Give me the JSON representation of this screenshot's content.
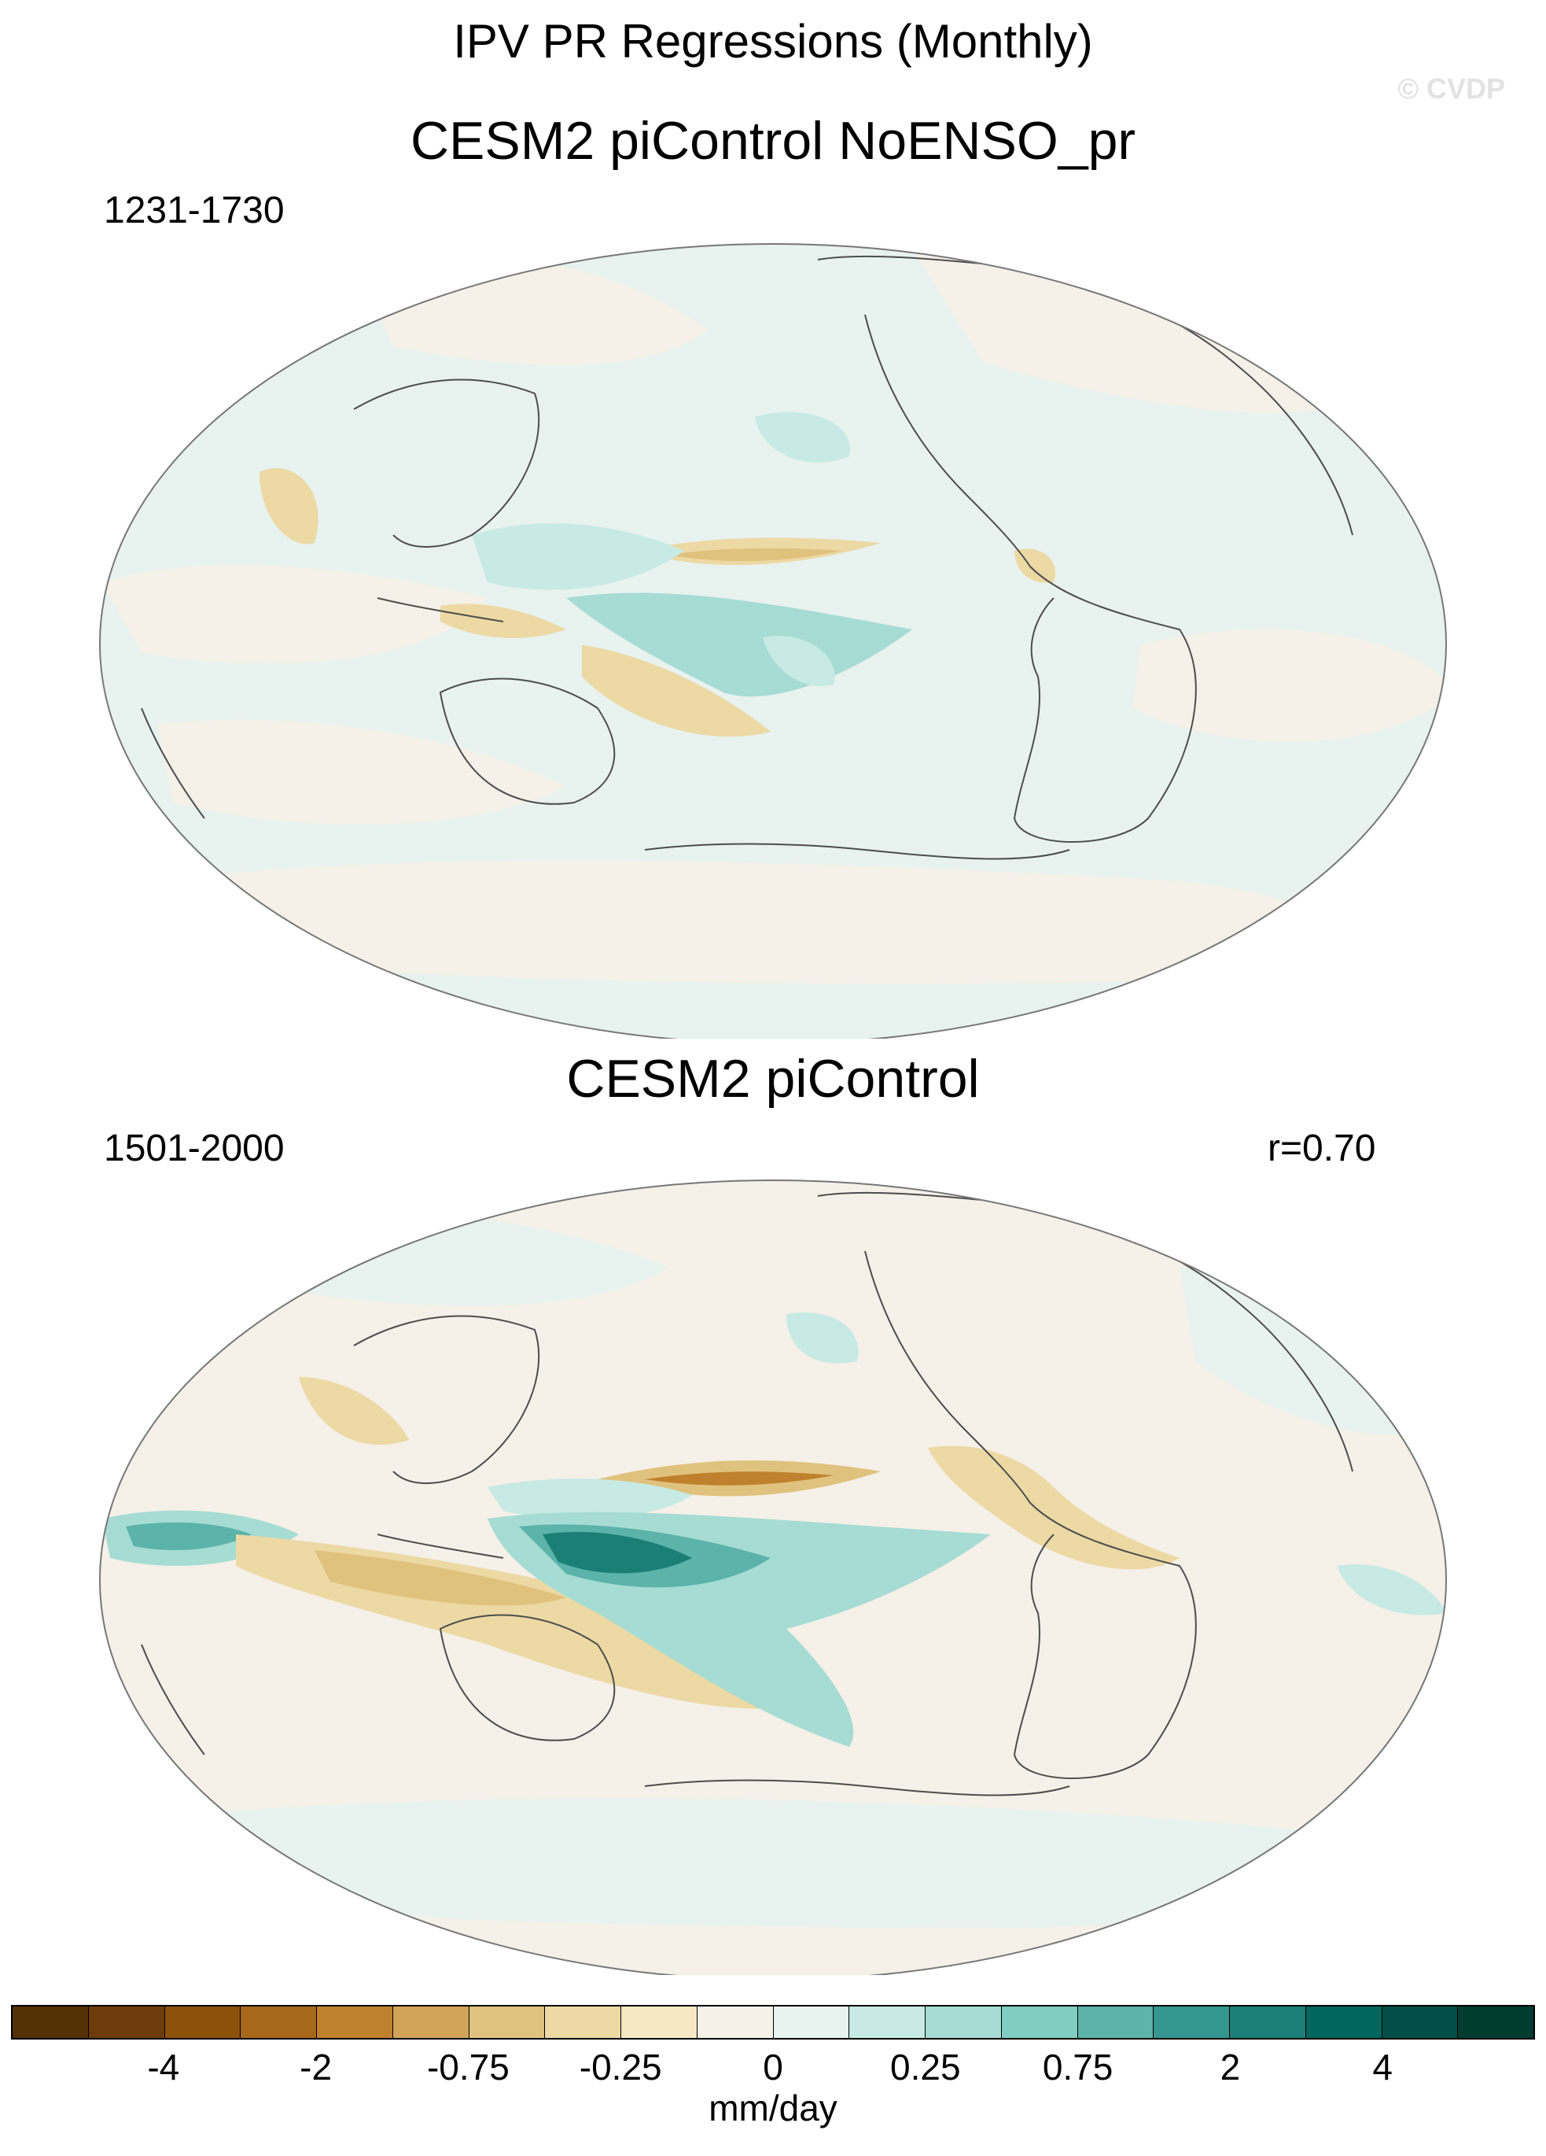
{
  "header": {
    "title": "IPV PR Regressions (Monthly)",
    "watermark": "© CVDP"
  },
  "panels": [
    {
      "title": "CESM2 piControl NoENSO_pr",
      "years": "1231-1730",
      "correlation": ""
    },
    {
      "title": "CESM2 piControl",
      "years": "1501-2000",
      "correlation": "r=0.70"
    }
  ],
  "colorbar": {
    "units": "mm/day",
    "tick_labels": [
      "-4",
      "-2",
      "-0.75",
      "-0.25",
      "0",
      "0.25",
      "0.75",
      "2",
      "4"
    ],
    "colors": [
      "#543005",
      "#6e3c0b",
      "#8c510a",
      "#a8681c",
      "#bf812d",
      "#d2a459",
      "#dfc27d",
      "#ecd9a4",
      "#f6e8c3",
      "#f5f0e8",
      "#e8f2ef",
      "#c7eae5",
      "#a6dcd3",
      "#80cdc1",
      "#5bb3a9",
      "#35978f",
      "#1b7f77",
      "#01665e",
      "#014f46",
      "#003c30"
    ]
  },
  "colors": {
    "land_outline": "#4d4d4d",
    "neutral_fill": "#f5f0e8",
    "ocean_fill": "#e8f2ef"
  }
}
